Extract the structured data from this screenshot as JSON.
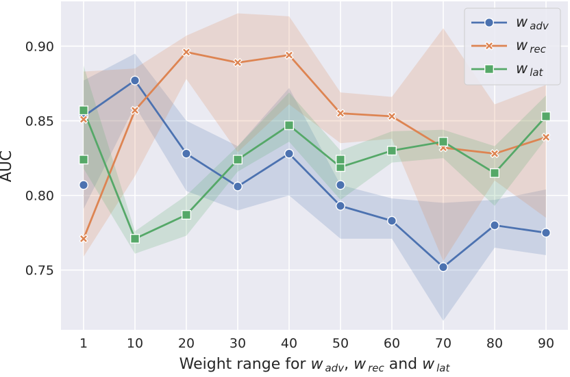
{
  "chart_data": {
    "type": "line",
    "xlabel": "Weight range for w adv, w rec and w lat",
    "xlabel_parts": {
      "prefix": "Weight range for ",
      "w": "w",
      "sub_adv": "adv",
      "sep1": ", ",
      "sub_rec": "rec",
      "sep2": " and ",
      "sub_lat": "lat"
    },
    "ylabel": "AUC",
    "ylim": [
      0.71,
      0.93
    ],
    "yticks": [
      0.75,
      0.8,
      0.85,
      0.9
    ],
    "ytick_labels": [
      "0.75",
      "0.80",
      "0.85",
      "0.90"
    ],
    "categories": [
      "1",
      "10",
      "20",
      "30",
      "40",
      "50",
      "60",
      "70",
      "80",
      "90"
    ],
    "grid": true,
    "legend_position": "top-right",
    "series": [
      {
        "name": "w adv",
        "legend_w": "w",
        "legend_sub": "adv",
        "color": "#4c72b0",
        "marker": "circle",
        "values": [
          0.853,
          0.877,
          0.828,
          0.806,
          0.828,
          0.793,
          0.783,
          0.752,
          0.78,
          0.775
        ],
        "extra_points": [
          {
            "index": 0,
            "value": 0.807
          },
          {
            "index": 5,
            "value": 0.807
          }
        ],
        "ci_low": [
          0.791,
          0.86,
          0.803,
          0.79,
          0.8,
          0.771,
          0.771,
          0.716,
          0.765,
          0.76
        ],
        "ci_high": [
          0.877,
          0.895,
          0.85,
          0.833,
          0.872,
          0.807,
          0.798,
          0.795,
          0.797,
          0.804
        ]
      },
      {
        "name": "w rec",
        "legend_w": "w",
        "legend_sub": "rec",
        "color": "#dd8452",
        "marker": "x",
        "values": [
          0.771,
          0.857,
          0.896,
          0.889,
          0.894,
          0.855,
          0.853,
          0.832,
          0.828,
          0.839
        ],
        "extra_points": [
          {
            "index": 0,
            "value": 0.851
          }
        ],
        "ci_low": [
          0.759,
          0.813,
          0.878,
          0.829,
          0.861,
          0.835,
          0.838,
          0.756,
          0.81,
          0.785
        ],
        "ci_high": [
          0.883,
          0.885,
          0.907,
          0.922,
          0.92,
          0.869,
          0.866,
          0.912,
          0.861,
          0.874
        ]
      },
      {
        "name": "w lat",
        "legend_w": "w",
        "legend_sub": "lat",
        "color": "#55a868",
        "marker": "square",
        "values": [
          0.857,
          0.771,
          0.787,
          0.824,
          0.847,
          0.819,
          0.83,
          0.836,
          0.815,
          0.853
        ],
        "extra_points": [
          {
            "index": 0,
            "value": 0.824
          },
          {
            "index": 5,
            "value": 0.824
          }
        ],
        "ci_low": [
          0.818,
          0.761,
          0.773,
          0.816,
          0.836,
          0.797,
          0.822,
          0.825,
          0.793,
          0.838
        ],
        "ci_high": [
          0.887,
          0.776,
          0.8,
          0.833,
          0.869,
          0.83,
          0.843,
          0.844,
          0.833,
          0.867
        ]
      }
    ],
    "colors": {
      "plot_background": "#eaeaf2",
      "grid": "#ffffff",
      "text": "#262626"
    }
  }
}
